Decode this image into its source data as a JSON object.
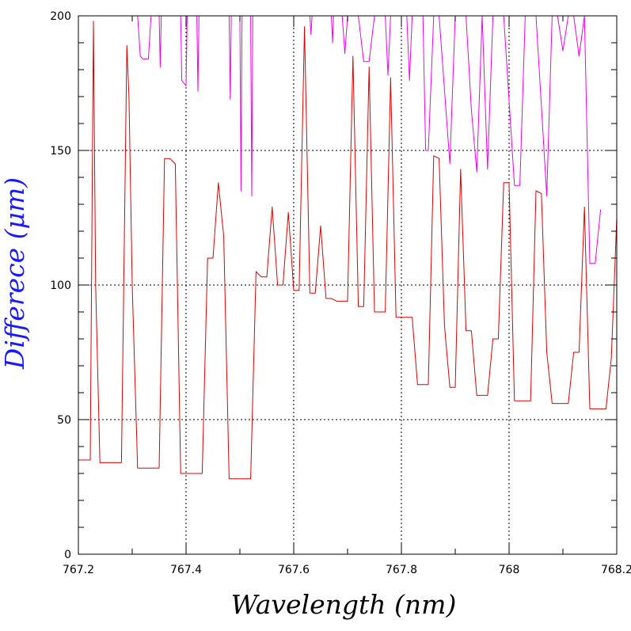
{
  "chart_data": {
    "type": "line",
    "xlabel": "Wavelength (nm)",
    "ylabel": "Differece (μm)",
    "xlim": [
      767.2,
      768.2
    ],
    "ylim": [
      0,
      200
    ],
    "xticks": [
      767.2,
      767.4,
      767.6,
      767.8,
      768,
      768.2
    ],
    "xtick_labels": [
      "767.2",
      "767.4",
      "767.6",
      "767.8",
      "768",
      "768.2"
    ],
    "yticks": [
      0,
      50,
      100,
      150,
      200
    ],
    "ytick_labels": [
      "0",
      "50",
      "100",
      "150",
      "200"
    ],
    "grid": true,
    "colors": {
      "axis_title": "#1a1aff",
      "gridline": "#000000"
    },
    "series": [
      {
        "color": "#dd0000",
        "x": [
          767.2,
          767.222,
          767.228,
          767.232,
          767.24,
          767.28,
          767.29,
          767.294,
          767.3,
          767.31,
          767.35,
          767.36,
          767.37,
          767.38,
          767.39,
          767.4,
          767.43,
          767.44,
          767.45,
          767.46,
          767.47,
          767.48,
          767.5,
          767.52,
          767.53,
          767.54,
          767.55,
          767.56,
          767.57,
          767.58,
          767.59,
          767.6,
          767.61,
          767.62,
          767.63,
          767.64,
          767.65,
          767.66,
          767.67,
          767.68,
          767.69,
          767.7,
          767.71,
          767.72,
          767.73,
          767.74,
          767.75,
          767.76,
          767.77,
          767.78,
          767.79,
          767.8,
          767.82,
          767.83,
          767.85,
          767.86,
          767.87,
          767.88,
          767.89,
          767.9,
          767.91,
          767.92,
          767.93,
          767.94,
          767.95,
          767.96,
          767.97,
          767.98,
          767.99,
          768,
          768.01,
          768.02,
          768.04,
          768.05,
          768.06,
          768.07,
          768.08,
          768.1,
          768.11,
          768.12,
          768.13,
          768.14,
          768.15,
          768.17,
          768.18,
          768.19,
          768.2
        ],
        "y": [
          35,
          35,
          198,
          100,
          34,
          34,
          189,
          170,
          100,
          32,
          32,
          147,
          147,
          145,
          30,
          30,
          30,
          110,
          110,
          138,
          118,
          28,
          28,
          28,
          105,
          103,
          103,
          129,
          100,
          100,
          127,
          98,
          98,
          196,
          97,
          97,
          122,
          95,
          95,
          94,
          94,
          94,
          185,
          92,
          92,
          181,
          90,
          90,
          90,
          177,
          88,
          88,
          88,
          63,
          63,
          148,
          147,
          85,
          62,
          62,
          143,
          83,
          83,
          59,
          59,
          59,
          80,
          80,
          138,
          138,
          57,
          57,
          57,
          135,
          134,
          75,
          56,
          56,
          56,
          75,
          75,
          129,
          54,
          54,
          54,
          73,
          125
        ]
      },
      {
        "color": "#ee00ee",
        "x": [
          767.31,
          767.315,
          767.32,
          767.33,
          767.335,
          767.35,
          767.352,
          767.354,
          767.39,
          767.392,
          767.4,
          767.402,
          767.41,
          767.412,
          767.42,
          767.422,
          767.424,
          767.48,
          767.482,
          767.484,
          767.5,
          767.502,
          767.504,
          767.52,
          767.522,
          767.524,
          767.53,
          767.61,
          767.612,
          767.63,
          767.632,
          767.634,
          767.67,
          767.672,
          767.674,
          767.69,
          767.695,
          767.7,
          767.72,
          767.73,
          767.74,
          767.75,
          767.755,
          767.76,
          767.77,
          767.775,
          767.78,
          767.81,
          767.815,
          767.82,
          767.84,
          767.845,
          767.85,
          767.86,
          767.87,
          767.89,
          767.9,
          767.92,
          767.93,
          767.94,
          767.95,
          767.96,
          767.97,
          767.98,
          767.99,
          768.01,
          768.02,
          768.03,
          768.04,
          768.05,
          768.07,
          768.08,
          768.09,
          768.1,
          768.11,
          768.12,
          768.13,
          768.14,
          768.15,
          768.16,
          768.17
        ],
        "y": [
          200,
          185,
          184,
          184,
          200,
          200,
          181,
          200,
          200,
          176,
          174,
          200,
          200,
          200,
          200,
          172,
          200,
          200,
          169,
          200,
          200,
          135,
          200,
          200,
          133,
          200,
          200,
          200,
          200,
          200,
          193,
          200,
          200,
          190,
          200,
          200,
          186,
          200,
          200,
          183,
          183,
          200,
          200,
          200,
          200,
          178,
          200,
          200,
          176,
          200,
          200,
          150,
          150,
          200,
          200,
          145,
          200,
          200,
          165,
          142,
          200,
          143,
          200,
          200,
          200,
          137,
          137,
          200,
          200,
          200,
          133,
          200,
          200,
          187,
          200,
          200,
          185,
          200,
          108,
          108,
          128
        ]
      }
    ]
  }
}
